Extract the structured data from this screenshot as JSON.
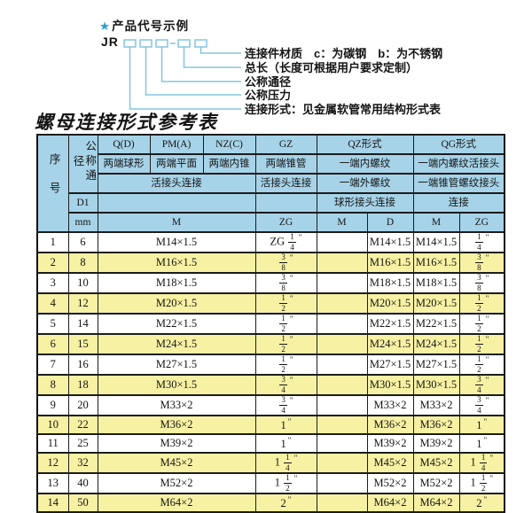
{
  "colors": {
    "accent_blue": "#2b9fd6",
    "line_blue": "#86c6dd",
    "header_blue": "#a6d3e8",
    "row_yellow": "#f7f1a3"
  },
  "diagram": {
    "star": "★",
    "title": "产品代号示例",
    "prefix": "JR",
    "labels": [
      {
        "text": "连接件材质　c：为碳钢　b：为不锈钢"
      },
      {
        "text": "总长（长度可根据用户要求定制）"
      },
      {
        "text": "公称通径"
      },
      {
        "text": "公称压力"
      },
      {
        "text": "连接形式：见金属软管常用结构形式表"
      }
    ]
  },
  "table_title": "螺母连接形式参考表",
  "table": {
    "header": {
      "seq": "序号",
      "dn": "公称通径",
      "d1": "D1",
      "mm": "mm",
      "q": "Q(D)",
      "pm": "PM(A)",
      "nz": "NZ(C)",
      "gz": "GZ",
      "qz": "QZ形式",
      "qg": "QG形式",
      "q_sub": "两端球形",
      "pm_sub": "两端平面",
      "nz_sub": "两端内锥",
      "gz_sub": "两端锥管",
      "qz_in": "一端内螺纹",
      "qg_in": "一端内螺纹活接头",
      "union": "活接头连接",
      "qz_out": "一端外螺纹",
      "qg_taper": "一端锥管螺纹接头",
      "ball": "球形接头连接",
      "conn": "连接",
      "m": "M",
      "zg": "ZG",
      "qz_m": "M",
      "qz_d": "D",
      "qg_m": "M",
      "qg_zg": "ZG"
    },
    "rows": [
      [
        "1",
        "6",
        "M14×1.5",
        "ZG 1/4\"",
        "",
        "M14×1.5",
        "M14×1.5",
        "1/4\""
      ],
      [
        "2",
        "8",
        "M16×1.5",
        "3/8\"",
        "",
        "M16×1.5",
        "M16×1.5",
        "3/8\""
      ],
      [
        "3",
        "10",
        "M18×1.5",
        "3/8\"",
        "",
        "M18×1.5",
        "M18×1.5",
        "3/8\""
      ],
      [
        "4",
        "12",
        "M20×1.5",
        "1/2\"",
        "",
        "M20×1.5",
        "M20×1.5",
        "1/2\""
      ],
      [
        "5",
        "14",
        "M22×1.5",
        "1/2\"",
        "",
        "M22×1.5",
        "M22×1.5",
        "1/2\""
      ],
      [
        "6",
        "15",
        "M24×1.5",
        "1/2\"",
        "",
        "M24×1.5",
        "M24×1.5",
        "1/2\""
      ],
      [
        "7",
        "16",
        "M27×1.5",
        "1/2\"",
        "",
        "M27×1.5",
        "M27×1.5",
        "1/2\""
      ],
      [
        "8",
        "18",
        "M30×1.5",
        "3/4\"",
        "",
        "M30×1.5",
        "M30×1.5",
        "3/4\""
      ],
      [
        "9",
        "20",
        "M33×2",
        "3/4\"",
        "",
        "M33×2",
        "M33×2",
        "3/4\""
      ],
      [
        "10",
        "22",
        "M36×2",
        "1\"",
        "",
        "M36×2",
        "M36×2",
        "1\""
      ],
      [
        "11",
        "25",
        "M39×2",
        "1\"",
        "",
        "M39×2",
        "M39×2",
        "1\""
      ],
      [
        "12",
        "32",
        "M45×2",
        "1 1/4\"",
        "",
        "M45×2",
        "M45×2",
        "1 1/4\""
      ],
      [
        "13",
        "40",
        "M52×2",
        "1 1/2\"",
        "",
        "M52×2",
        "M52×2",
        "1 1/2\""
      ],
      [
        "14",
        "50",
        "M64×2",
        "2\"",
        "",
        "M64×2",
        "M64×2",
        "2\""
      ]
    ]
  }
}
